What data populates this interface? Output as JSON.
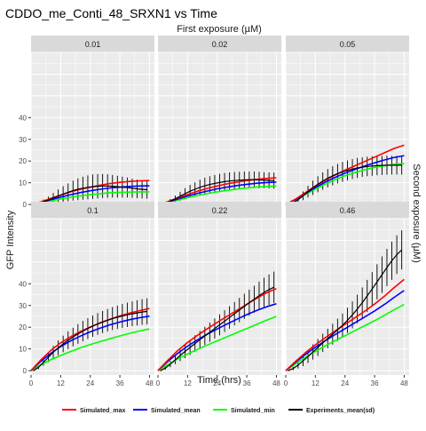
{
  "chart_data": {
    "type": "line",
    "title": "CDDO_me_Conti_48_SRXN1 vs Time",
    "top_strip_label": "First exposure (µM)",
    "right_strip_label": "Second exposure (µM)",
    "xlabel": "Time (hrs)",
    "ylabel": "GFP Intensity",
    "xlim": [
      0,
      50
    ],
    "ylim": [
      -2,
      70
    ],
    "x_ticks": [
      0,
      12,
      24,
      36,
      48
    ],
    "x_tick_labels": [
      "0",
      "12",
      "24",
      "36",
      "48"
    ],
    "y_ticks": [
      0,
      10,
      20,
      30,
      40
    ],
    "y_tick_labels": [
      "0",
      "10",
      "20",
      "30",
      "40"
    ],
    "grid": true,
    "legend_position": "bottom",
    "colors": {
      "Simulated_max": "#ff0000",
      "Simulated_mean": "#0000ff",
      "Simulated_min": "#00ff00",
      "Experiments_mean(sd)": "#000000",
      "panel_bg": "#ebebeb",
      "strip_bg": "#d9d9d9"
    },
    "legend": [
      {
        "name": "Simulated_max",
        "color": "#ff0000"
      },
      {
        "name": "Simulated_mean",
        "color": "#0000ff"
      },
      {
        "name": "Simulated_min",
        "color": "#00ff00"
      },
      {
        "name": "Experiments_mean(sd)",
        "color": "#000000"
      }
    ],
    "panels": [
      {
        "label": "0.01",
        "sim": {
          "x": [
            0,
            4,
            8,
            12,
            16,
            20,
            24,
            28,
            32,
            36,
            40,
            44,
            48
          ],
          "max": [
            0,
            1.2,
            2.8,
            4.3,
            5.8,
            7.0,
            8.0,
            8.9,
            9.6,
            10.2,
            10.6,
            10.9,
            11.0
          ],
          "mean": [
            0,
            1.0,
            2.2,
            3.4,
            4.5,
            5.5,
            6.3,
            7.0,
            7.6,
            8.0,
            8.3,
            8.5,
            8.6
          ],
          "min": [
            0,
            0.8,
            1.7,
            2.5,
            3.3,
            4.0,
            4.6,
            5.0,
            5.4,
            5.6,
            5.7,
            5.8,
            5.8
          ]
        },
        "exp": {
          "x": [
            1,
            3,
            5,
            7,
            9,
            11,
            13,
            15,
            17,
            19,
            21,
            23,
            25,
            27,
            29,
            31,
            33,
            35,
            37,
            39,
            41,
            43,
            45,
            47
          ],
          "mean": [
            0.0,
            0.5,
            1.3,
            2.0,
            3.0,
            3.9,
            4.8,
            5.6,
            6.4,
            7.0,
            7.5,
            7.9,
            8.2,
            8.4,
            8.5,
            8.5,
            8.4,
            8.2,
            8.0,
            7.8,
            7.5,
            7.2,
            7.0,
            6.8
          ],
          "sd": [
            0.2,
            0.5,
            1.0,
            1.6,
            2.3,
            3.0,
            3.6,
            4.1,
            4.6,
            5.0,
            5.3,
            5.5,
            5.6,
            5.6,
            5.5,
            5.4,
            5.2,
            5.0,
            4.8,
            4.6,
            4.4,
            4.3,
            4.2,
            4.1
          ]
        }
      },
      {
        "label": "0.02",
        "sim": {
          "x": [
            0,
            4,
            8,
            12,
            16,
            20,
            24,
            28,
            32,
            36,
            40,
            44,
            48
          ],
          "max": [
            0,
            1.3,
            3.0,
            4.6,
            6.1,
            7.4,
            8.5,
            9.5,
            10.3,
            11.0,
            11.6,
            12.0,
            12.3
          ],
          "mean": [
            0,
            1.1,
            2.5,
            3.9,
            5.1,
            6.2,
            7.2,
            8.0,
            8.7,
            9.3,
            9.8,
            10.1,
            10.3
          ],
          "min": [
            0,
            0.9,
            2.0,
            3.1,
            4.1,
            5.0,
            5.8,
            6.5,
            7.1,
            7.6,
            8.0,
            8.3,
            8.5
          ]
        },
        "exp": {
          "x": [
            1,
            3,
            5,
            7,
            9,
            11,
            13,
            15,
            17,
            19,
            21,
            23,
            25,
            27,
            29,
            31,
            33,
            35,
            37,
            39,
            41,
            43,
            45,
            47
          ],
          "mean": [
            0.0,
            0.6,
            1.5,
            2.6,
            3.8,
            5.0,
            6.1,
            7.0,
            7.9,
            8.6,
            9.2,
            9.7,
            10.1,
            10.5,
            10.8,
            11.0,
            11.2,
            11.3,
            11.4,
            11.4,
            11.3,
            11.2,
            11.1,
            11.0
          ],
          "sd": [
            0.2,
            0.5,
            1.0,
            1.5,
            2.0,
            2.5,
            2.9,
            3.2,
            3.5,
            3.7,
            3.8,
            3.9,
            4.0,
            4.0,
            4.0,
            4.0,
            3.9,
            3.9,
            3.8,
            3.8,
            3.8,
            3.7,
            3.7,
            3.7
          ]
        }
      },
      {
        "label": "0.05",
        "sim": {
          "x": [
            0,
            4,
            8,
            12,
            16,
            20,
            24,
            28,
            32,
            36,
            40,
            44,
            48
          ],
          "max": [
            0,
            2.5,
            5.5,
            8.5,
            11.2,
            13.6,
            15.8,
            17.8,
            19.8,
            21.8,
            23.8,
            25.8,
            27.3
          ],
          "mean": [
            0,
            2.3,
            5.0,
            7.8,
            10.3,
            12.5,
            14.4,
            16.1,
            17.7,
            19.2,
            20.5,
            21.7,
            22.5
          ],
          "min": [
            0,
            2.1,
            4.6,
            7.1,
            9.4,
            11.4,
            13.2,
            14.7,
            16.0,
            17.1,
            17.9,
            18.5,
            18.8
          ]
        },
        "exp": {
          "x": [
            1,
            3,
            5,
            7,
            9,
            11,
            13,
            15,
            17,
            19,
            21,
            23,
            25,
            27,
            29,
            31,
            33,
            35,
            37,
            39,
            41,
            43,
            45,
            47
          ],
          "mean": [
            0.0,
            0.8,
            2.2,
            4.0,
            5.9,
            7.7,
            9.3,
            10.8,
            12.1,
            13.2,
            14.2,
            15.0,
            15.7,
            16.3,
            16.8,
            17.2,
            17.5,
            17.7,
            17.9,
            18.0,
            18.1,
            18.1,
            18.1,
            18.1
          ],
          "sd": [
            0.2,
            0.6,
            1.2,
            2.0,
            2.7,
            3.3,
            3.7,
            4.0,
            4.2,
            4.4,
            4.5,
            4.6,
            4.6,
            4.6,
            4.6,
            4.5,
            4.5,
            4.5,
            4.4,
            4.4,
            4.4,
            4.3,
            4.3,
            4.3
          ]
        }
      },
      {
        "label": "0.1",
        "sim": {
          "x": [
            0,
            4,
            8,
            12,
            16,
            20,
            24,
            28,
            32,
            36,
            40,
            44,
            48
          ],
          "max": [
            0,
            5.0,
            9.3,
            12.8,
            15.6,
            18.0,
            20.1,
            22.0,
            23.7,
            25.2,
            26.5,
            27.6,
            28.6
          ],
          "mean": [
            0,
            4.3,
            8.0,
            11.1,
            13.7,
            15.9,
            17.9,
            19.6,
            21.1,
            22.4,
            23.5,
            24.4,
            25.1
          ],
          "min": [
            0,
            2.7,
            5.0,
            7.0,
            8.8,
            10.5,
            12.0,
            13.4,
            14.7,
            16.0,
            17.2,
            18.3,
            19.2
          ]
        },
        "exp": {
          "x": [
            1,
            3,
            5,
            7,
            9,
            11,
            13,
            15,
            17,
            19,
            21,
            23,
            25,
            27,
            29,
            31,
            33,
            35,
            37,
            39,
            41,
            43,
            45,
            47
          ],
          "mean": [
            0.0,
            1.5,
            3.8,
            6.2,
            8.5,
            10.5,
            12.3,
            14.0,
            15.5,
            16.9,
            18.2,
            19.4,
            20.5,
            21.5,
            22.4,
            23.2,
            24.0,
            24.6,
            25.2,
            25.7,
            26.2,
            26.6,
            27.0,
            27.3
          ],
          "sd": [
            0.2,
            0.8,
            1.5,
            2.3,
            2.9,
            3.4,
            3.8,
            4.1,
            4.3,
            4.5,
            4.7,
            4.8,
            4.9,
            5.0,
            5.1,
            5.2,
            5.3,
            5.4,
            5.5,
            5.6,
            5.7,
            5.8,
            5.9,
            6.0
          ]
        }
      },
      {
        "label": "0.22",
        "sim": {
          "x": [
            0,
            4,
            8,
            12,
            16,
            20,
            24,
            28,
            32,
            36,
            40,
            44,
            48
          ],
          "max": [
            0,
            4.8,
            9.2,
            13.0,
            16.3,
            19.3,
            22.2,
            25.0,
            27.8,
            30.6,
            33.3,
            35.8,
            37.8
          ],
          "mean": [
            0,
            4.2,
            8.0,
            11.3,
            14.2,
            16.8,
            19.2,
            21.5,
            23.7,
            25.8,
            27.7,
            29.4,
            30.8
          ],
          "min": [
            0,
            2.8,
            5.4,
            7.7,
            9.8,
            11.8,
            13.7,
            15.6,
            17.5,
            19.4,
            21.3,
            23.2,
            25.0
          ]
        },
        "exp": {
          "x": [
            1,
            3,
            5,
            7,
            9,
            11,
            13,
            15,
            17,
            19,
            21,
            23,
            25,
            27,
            29,
            31,
            33,
            35,
            37,
            39,
            41,
            43,
            45,
            47
          ],
          "mean": [
            0.0,
            1.2,
            3.0,
            5.0,
            7.0,
            8.9,
            10.7,
            12.5,
            14.3,
            16.0,
            17.7,
            19.4,
            21.1,
            22.8,
            24.5,
            26.2,
            27.9,
            29.6,
            31.3,
            32.9,
            34.5,
            36.0,
            37.3,
            38.4
          ],
          "sd": [
            0.2,
            0.7,
            1.4,
            2.0,
            2.6,
            3.1,
            3.5,
            3.8,
            4.0,
            4.2,
            4.4,
            4.6,
            4.8,
            5.0,
            5.2,
            5.4,
            5.6,
            5.8,
            6.0,
            6.2,
            6.5,
            6.8,
            7.0,
            7.2
          ]
        }
      },
      {
        "label": "0.46",
        "sim": {
          "x": [
            0,
            4,
            8,
            12,
            16,
            20,
            24,
            28,
            32,
            36,
            40,
            44,
            48
          ],
          "max": [
            0,
            4.3,
            8.3,
            11.9,
            15.2,
            18.3,
            21.3,
            24.3,
            27.4,
            30.7,
            34.3,
            38.3,
            42.0
          ],
          "mean": [
            0,
            3.9,
            7.5,
            10.8,
            13.8,
            16.6,
            19.3,
            22.0,
            24.7,
            27.5,
            30.5,
            33.8,
            36.9
          ],
          "min": [
            0,
            3.2,
            6.2,
            8.9,
            11.4,
            13.8,
            16.1,
            18.4,
            20.7,
            23.0,
            25.5,
            28.1,
            30.5
          ]
        },
        "exp": {
          "x": [
            1,
            3,
            5,
            7,
            9,
            11,
            13,
            15,
            17,
            19,
            21,
            23,
            25,
            27,
            29,
            31,
            33,
            35,
            37,
            39,
            41,
            43,
            45,
            47
          ],
          "mean": [
            0.0,
            1.0,
            2.6,
            4.5,
            6.5,
            8.6,
            10.7,
            12.8,
            14.8,
            16.8,
            18.8,
            20.9,
            23.2,
            25.7,
            28.4,
            31.3,
            34.4,
            37.6,
            40.9,
            44.2,
            47.5,
            50.6,
            53.4,
            55.6
          ],
          "sd": [
            0.2,
            0.8,
            1.6,
            2.4,
            3.0,
            3.5,
            3.9,
            4.2,
            4.5,
            4.8,
            5.1,
            5.4,
            5.8,
            6.2,
            6.6,
            7.0,
            7.4,
            7.8,
            8.1,
            8.4,
            8.6,
            8.8,
            8.9,
            9.0
          ]
        }
      }
    ]
  }
}
